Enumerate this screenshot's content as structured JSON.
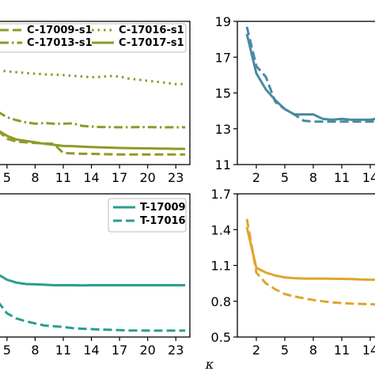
{
  "chart_data": [
    {
      "type": "line",
      "panel": "top-left",
      "xticks": [
        5,
        8,
        11,
        14,
        17,
        20,
        23
      ],
      "xlim": [
        4,
        24.5
      ],
      "yticks": [],
      "ylim": [
        0,
        1
      ],
      "legend": {
        "placement": "top",
        "ncol": 2
      },
      "series": [
        {
          "name": "C-17009-s1",
          "style": "dashed",
          "color": "#8f9a26",
          "x": [
            4,
            5,
            6,
            7,
            8,
            9,
            10,
            11,
            12,
            13,
            14,
            15,
            16,
            17,
            18,
            19,
            20,
            21,
            22,
            23,
            24
          ],
          "y": [
            0.24,
            0.18,
            0.16,
            0.155,
            0.15,
            0.148,
            0.145,
            0.08,
            0.078,
            0.075,
            0.075,
            0.073,
            0.072,
            0.07,
            0.07,
            0.07,
            0.07,
            0.07,
            0.07,
            0.07,
            0.07
          ]
        },
        {
          "name": "C-17013-s1",
          "style": "dashdot",
          "color": "#8f9a26",
          "x": [
            4,
            5,
            6,
            7,
            8,
            9,
            10,
            11,
            12,
            13,
            14,
            15,
            16,
            17,
            18,
            19,
            20,
            21,
            22,
            23,
            24
          ],
          "y": [
            0.37,
            0.33,
            0.31,
            0.295,
            0.285,
            0.29,
            0.285,
            0.285,
            0.288,
            0.27,
            0.265,
            0.262,
            0.262,
            0.26,
            0.26,
            0.262,
            0.262,
            0.26,
            0.26,
            0.26,
            0.26
          ]
        },
        {
          "name": "C-17016-s1",
          "style": "dotted",
          "color": "#8f9a26",
          "x": [
            4,
            5,
            6,
            7,
            8,
            9,
            10,
            11,
            12,
            13,
            14,
            15,
            16,
            17,
            18,
            19,
            20,
            21,
            22,
            23,
            24
          ],
          "y": [
            0.66,
            0.65,
            0.645,
            0.64,
            0.635,
            0.63,
            0.628,
            0.625,
            0.62,
            0.615,
            0.61,
            0.612,
            0.618,
            0.615,
            0.6,
            0.593,
            0.585,
            0.578,
            0.57,
            0.562,
            0.562
          ]
        },
        {
          "name": "C-17017-s1",
          "style": "solid",
          "color": "#8f9a26",
          "x": [
            4,
            5,
            6,
            7,
            8,
            9,
            10,
            11,
            12,
            13,
            14,
            15,
            16,
            17,
            18,
            19,
            20,
            21,
            22,
            23,
            24
          ],
          "y": [
            0.24,
            0.2,
            0.175,
            0.165,
            0.155,
            0.145,
            0.138,
            0.13,
            0.128,
            0.125,
            0.122,
            0.12,
            0.118,
            0.116,
            0.115,
            0.114,
            0.113,
            0.112,
            0.111,
            0.11,
            0.11
          ]
        }
      ]
    },
    {
      "type": "line",
      "panel": "top-right",
      "xticks": [
        2,
        5,
        8,
        11,
        14
      ],
      "xlim": [
        0,
        15
      ],
      "yticks": [
        11,
        13,
        15,
        17,
        19
      ],
      "ylim": [
        11,
        19
      ],
      "series": [
        {
          "style": "solid",
          "color": "#4a8aa0",
          "x": [
            1,
            2,
            3,
            4,
            5,
            6,
            7,
            8,
            9,
            10,
            11,
            12,
            13,
            14,
            15
          ],
          "y": [
            18.3,
            16.1,
            15.2,
            14.6,
            14.1,
            13.8,
            13.8,
            13.8,
            13.55,
            13.5,
            13.55,
            13.5,
            13.5,
            13.5,
            13.6
          ]
        },
        {
          "style": "dashed",
          "color": "#4a8aa0",
          "x": [
            1,
            2,
            3,
            4,
            5,
            6,
            7,
            8,
            9,
            10,
            11,
            12,
            13,
            14,
            15
          ],
          "y": [
            18.7,
            16.5,
            15.9,
            14.5,
            14.1,
            13.8,
            13.45,
            13.4,
            13.4,
            13.4,
            13.4,
            13.4,
            13.4,
            13.4,
            13.4
          ]
        }
      ]
    },
    {
      "type": "line",
      "panel": "bottom-left",
      "xticks": [
        5,
        8,
        11,
        14,
        17,
        20,
        23
      ],
      "xlim": [
        4,
        24.5
      ],
      "yticks": [],
      "ylim": [
        0,
        1
      ],
      "legend": {
        "placement": "top-right",
        "ncol": 1
      },
      "series": [
        {
          "name": "T-17009",
          "style": "solid",
          "color": "#2a9d8f",
          "x": [
            4,
            5,
            6,
            7,
            8,
            9,
            10,
            11,
            12,
            13,
            14,
            15,
            16,
            17,
            18,
            19,
            20,
            21,
            22,
            23,
            24
          ],
          "y": [
            0.44,
            0.4,
            0.38,
            0.37,
            0.368,
            0.365,
            0.362,
            0.362,
            0.362,
            0.361,
            0.362,
            0.362,
            0.362,
            0.362,
            0.362,
            0.362,
            0.362,
            0.362,
            0.362,
            0.362,
            0.362
          ]
        },
        {
          "name": "T-17016",
          "style": "dashed",
          "color": "#2a9d8f",
          "x": [
            4,
            5,
            6,
            7,
            8,
            9,
            10,
            11,
            12,
            13,
            14,
            15,
            16,
            17,
            18,
            19,
            20,
            21,
            22,
            23,
            24
          ],
          "y": [
            0.25,
            0.165,
            0.13,
            0.11,
            0.095,
            0.08,
            0.075,
            0.07,
            0.062,
            0.058,
            0.055,
            0.052,
            0.05,
            0.048,
            0.046,
            0.046,
            0.045,
            0.045,
            0.045,
            0.045,
            0.045
          ]
        }
      ]
    },
    {
      "type": "line",
      "panel": "bottom-right",
      "xticks": [
        2,
        5,
        8,
        11,
        14
      ],
      "xlim": [
        0,
        15
      ],
      "yticks": [
        0.5,
        0.8,
        1.1,
        1.4,
        1.7
      ],
      "ylim": [
        0.5,
        1.7
      ],
      "xlabel": "κ",
      "series": [
        {
          "style": "solid",
          "color": "#e0a52a",
          "x": [
            1,
            1.5,
            2,
            3,
            4,
            5,
            6,
            7,
            8,
            9,
            10,
            11,
            12,
            13,
            14,
            15
          ],
          "y": [
            1.42,
            1.25,
            1.08,
            1.04,
            1.015,
            1.0,
            0.993,
            0.99,
            0.99,
            0.99,
            0.988,
            0.987,
            0.985,
            0.982,
            0.98,
            0.98
          ]
        },
        {
          "style": "dashed",
          "color": "#e0a52a",
          "x": [
            1,
            1.5,
            2,
            3,
            4,
            5,
            6,
            7,
            8,
            9,
            10,
            11,
            12,
            13,
            14,
            15
          ],
          "y": [
            1.49,
            1.27,
            1.04,
            0.95,
            0.9,
            0.86,
            0.84,
            0.825,
            0.81,
            0.8,
            0.79,
            0.785,
            0.78,
            0.778,
            0.775,
            0.772
          ]
        }
      ]
    }
  ]
}
